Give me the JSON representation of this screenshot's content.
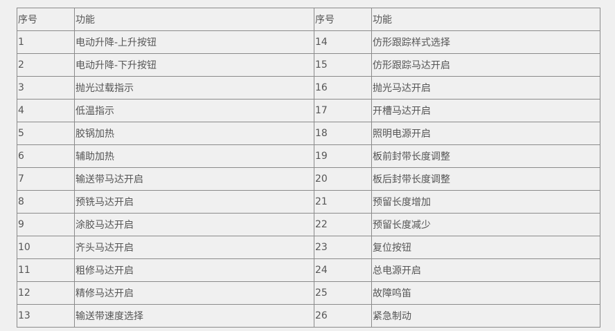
{
  "headers": [
    "序号",
    "功能",
    "序号",
    "功能"
  ],
  "rows": [
    [
      "1",
      "电动升降-上升按钮",
      "14",
      "仿形跟踪样式选择"
    ],
    [
      "2",
      "电动升降-下升按钮",
      "15",
      "仿形跟踪马达开启"
    ],
    [
      "3",
      "抛光过载指示",
      "16",
      "抛光马达开启"
    ],
    [
      "4",
      "低温指示",
      "17",
      "开槽马达开启"
    ],
    [
      "5",
      "胶锅加热",
      "18",
      "照明电源开启"
    ],
    [
      "6",
      "辅助加热",
      "19",
      "板前封带长度调整"
    ],
    [
      "7",
      "输送带马达开启",
      "20",
      "板后封带长度调整"
    ],
    [
      "8",
      "预铣马达开启",
      "21",
      "预留长度增加"
    ],
    [
      "9",
      "涂胶马达开启",
      "22",
      "预留长度减少"
    ],
    [
      "10",
      "齐头马达开启",
      "23",
      "复位按钮"
    ],
    [
      "11",
      "粗修马达开启",
      "24",
      "总电源开启"
    ],
    [
      "12",
      "精修马达开启",
      "25",
      "故障鸣笛"
    ],
    [
      "13",
      "输送带速度选择",
      "26",
      "紧急制动"
    ]
  ]
}
